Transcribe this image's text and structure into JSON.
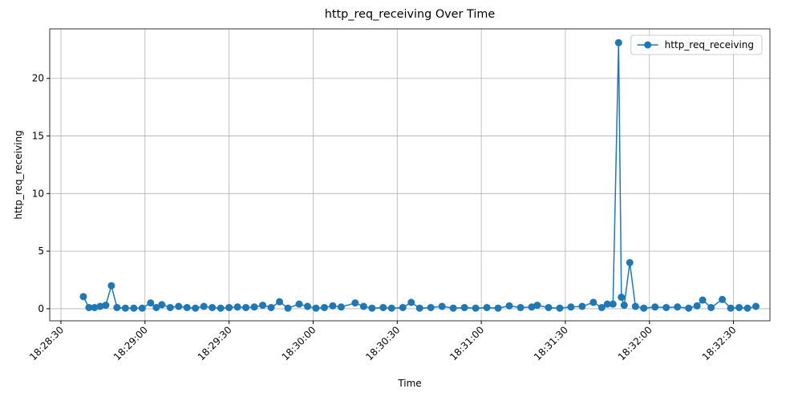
{
  "chart_data": {
    "type": "line",
    "title": "http_req_receiving Over Time",
    "x_label": "Time",
    "y_label": "http_req_receiving",
    "x": [
      "18:28:38",
      "18:28:40",
      "18:28:42",
      "18:28:44",
      "18:28:46",
      "18:28:48",
      "18:28:50",
      "18:28:53",
      "18:28:56",
      "18:28:59",
      "18:29:02",
      "18:29:04",
      "18:29:06",
      "18:29:09",
      "18:29:12",
      "18:29:15",
      "18:29:18",
      "18:29:21",
      "18:29:24",
      "18:29:27",
      "18:29:30",
      "18:29:33",
      "18:29:36",
      "18:29:39",
      "18:29:42",
      "18:29:45",
      "18:29:48",
      "18:29:51",
      "18:29:55",
      "18:29:58",
      "18:30:01",
      "18:30:04",
      "18:30:07",
      "18:30:10",
      "18:30:15",
      "18:30:18",
      "18:30:21",
      "18:30:25",
      "18:30:28",
      "18:30:32",
      "18:30:35",
      "18:30:38",
      "18:30:42",
      "18:30:46",
      "18:30:50",
      "18:30:54",
      "18:30:58",
      "18:31:02",
      "18:31:06",
      "18:31:10",
      "18:31:14",
      "18:31:18",
      "18:31:20",
      "18:31:24",
      "18:31:28",
      "18:31:32",
      "18:31:36",
      "18:31:40",
      "18:31:43",
      "18:31:45",
      "18:31:47",
      "18:31:49",
      "18:31:50",
      "18:31:51",
      "18:31:53",
      "18:31:55",
      "18:31:58",
      "18:32:02",
      "18:32:06",
      "18:32:10",
      "18:32:14",
      "18:32:17",
      "18:32:19",
      "18:32:22",
      "18:32:26",
      "18:32:29",
      "18:32:32",
      "18:32:35",
      "18:32:38"
    ],
    "series": [
      {
        "name": "http_req_receiving",
        "color": "#1f77b4",
        "values": [
          1.05,
          0.1,
          0.1,
          0.2,
          0.3,
          2.0,
          0.1,
          0.05,
          0.05,
          0.05,
          0.5,
          0.1,
          0.35,
          0.1,
          0.2,
          0.1,
          0.05,
          0.2,
          0.1,
          0.05,
          0.1,
          0.15,
          0.1,
          0.15,
          0.3,
          0.1,
          0.6,
          0.05,
          0.4,
          0.2,
          0.05,
          0.1,
          0.25,
          0.15,
          0.5,
          0.2,
          0.05,
          0.1,
          0.05,
          0.1,
          0.55,
          0.05,
          0.1,
          0.2,
          0.05,
          0.1,
          0.05,
          0.1,
          0.05,
          0.25,
          0.1,
          0.15,
          0.3,
          0.1,
          0.05,
          0.15,
          0.2,
          0.55,
          0.1,
          0.4,
          0.4,
          23.1,
          1.0,
          0.3,
          4.0,
          0.2,
          0.05,
          0.15,
          0.1,
          0.15,
          0.05,
          0.25,
          0.75,
          0.1,
          0.8,
          0.05,
          0.1,
          0.05,
          0.2
        ]
      }
    ],
    "xlim": [
      "18:28:26",
      "18:32:43"
    ],
    "xticks": [
      "18:28:30",
      "18:29:00",
      "18:29:30",
      "18:30:00",
      "18:30:30",
      "18:31:00",
      "18:31:30",
      "18:32:00",
      "18:32:30"
    ],
    "ylim": [
      -1.05,
      24.3
    ],
    "yticks": [
      0,
      5,
      10,
      15,
      20
    ],
    "grid": true,
    "legend": "upper right"
  }
}
